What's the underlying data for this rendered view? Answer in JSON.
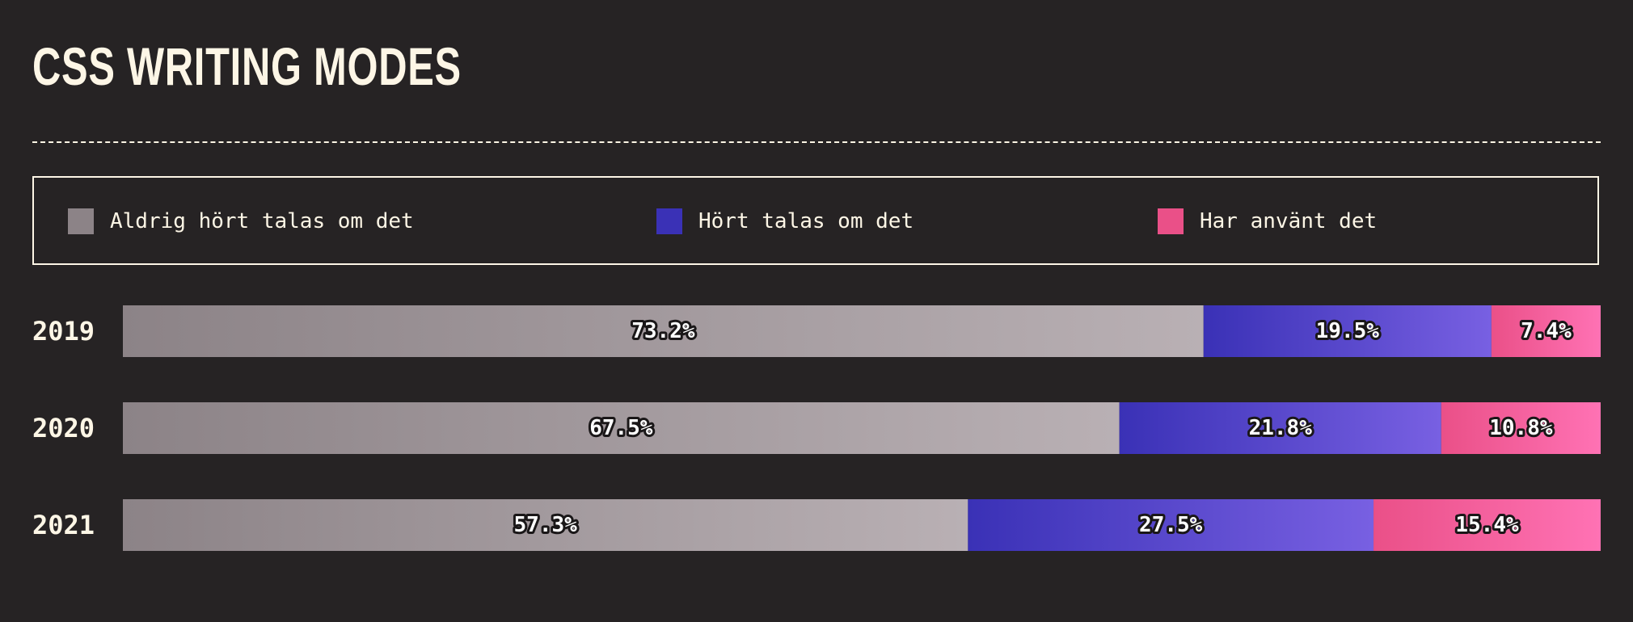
{
  "page": {
    "title": "CSS WRITING MODES"
  },
  "colors": {
    "background": "#262324",
    "text": "#fdf6e6",
    "never_heard": [
      "#8c8387",
      "#b9b0b4"
    ],
    "heard": [
      "#3a31b6",
      "#7860e2"
    ],
    "used": [
      "#ea5088",
      "#ff72b4"
    ]
  },
  "legend": {
    "items": [
      {
        "label": "Aldrig hört talas om det",
        "color": "#8c8387"
      },
      {
        "label": "Hört talas om det",
        "color": "#3a31b6"
      },
      {
        "label": "Har använt det",
        "color": "#ea5088"
      }
    ]
  },
  "chart_data": {
    "type": "bar",
    "orientation": "horizontal",
    "stacked": true,
    "normalized": true,
    "categories": [
      "2019",
      "2020",
      "2021"
    ],
    "series": [
      {
        "name": "Aldrig hört talas om det",
        "values": [
          73.2,
          67.5,
          57.3
        ]
      },
      {
        "name": "Hört talas om det",
        "values": [
          19.5,
          21.8,
          27.5
        ]
      },
      {
        "name": "Har använt det",
        "values": [
          7.4,
          10.8,
          15.4
        ]
      }
    ],
    "value_suffix": "%",
    "legend": "top",
    "grid": false
  }
}
